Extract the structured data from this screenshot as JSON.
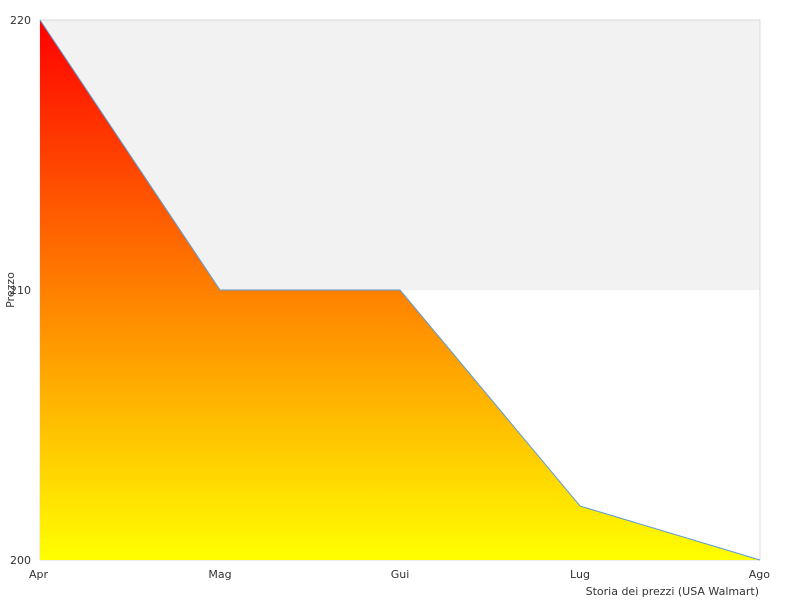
{
  "chart_data": {
    "type": "area",
    "title": "",
    "xlabel": "Storia dei prezzi (USA Walmart)",
    "ylabel": "Prezzo",
    "categories": [
      "Apr",
      "Mag",
      "Gui",
      "Lug",
      "Ago"
    ],
    "series": [
      {
        "values": [
          220,
          210,
          210,
          202,
          200
        ]
      }
    ],
    "ylim": [
      200,
      220
    ],
    "y_ticks": [
      200,
      210,
      220
    ],
    "grid": false,
    "alternating_bands": true,
    "legend": "none",
    "colors": {
      "fill_top": "#ff0000",
      "fill_bottom": "#ffff00",
      "line": "#5b9bd5",
      "band": "#f2f2f2",
      "axis": "#d9d9d9"
    }
  }
}
